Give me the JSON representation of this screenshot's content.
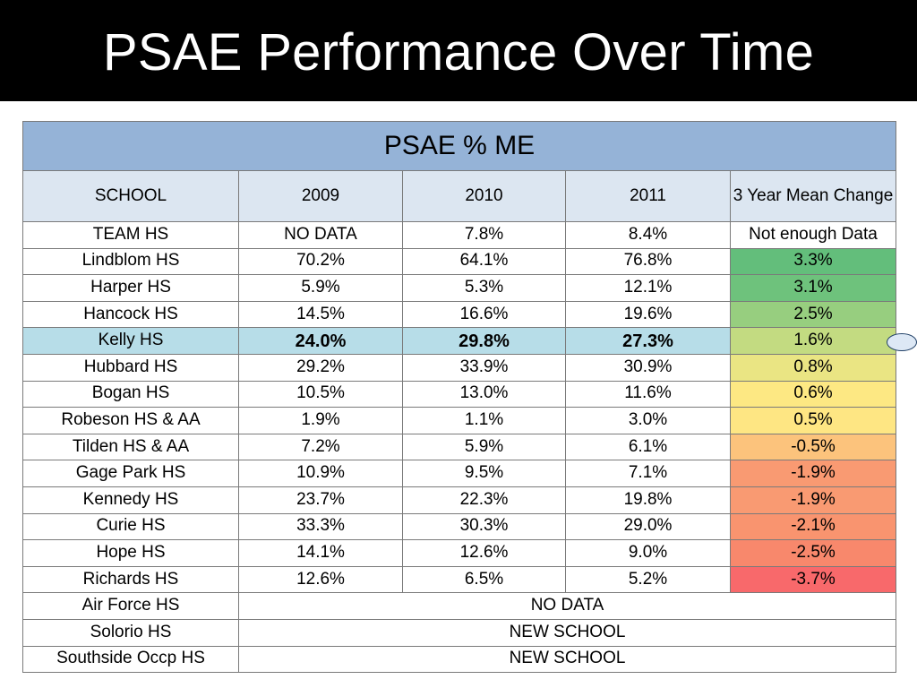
{
  "title": "PSAE Performance Over Time",
  "table": {
    "main_header": "PSAE % ME",
    "columns": [
      "SCHOOL",
      "2009",
      "2010",
      "2011",
      "3 Year Mean Change"
    ],
    "highlighted_school": "Kelly HS",
    "rows": [
      {
        "school": "TEAM HS",
        "y2009": "NO DATA",
        "y2010": "7.8%",
        "y2011": "8.4%",
        "change": "Not enough Data",
        "change_color": "#ffffff"
      },
      {
        "school": "Lindblom HS",
        "y2009": "70.2%",
        "y2010": "64.1%",
        "y2011": "76.8%",
        "change": "3.3%",
        "change_color": "#63be7b"
      },
      {
        "school": "Harper HS",
        "y2009": "5.9%",
        "y2010": "5.3%",
        "y2011": "12.1%",
        "change": "3.1%",
        "change_color": "#6ec27c"
      },
      {
        "school": "Hancock HS",
        "y2009": "14.5%",
        "y2010": "16.6%",
        "y2011": "19.6%",
        "change": "2.5%",
        "change_color": "#97ce7f"
      },
      {
        "school": "Kelly HS",
        "y2009": "24.0%",
        "y2010": "29.8%",
        "y2011": "27.3%",
        "change": "1.6%",
        "change_color": "#c3db81"
      },
      {
        "school": "Hubbard HS",
        "y2009": "29.2%",
        "y2010": "33.9%",
        "y2011": "30.9%",
        "change": "0.8%",
        "change_color": "#eae583"
      },
      {
        "school": "Bogan HS",
        "y2009": "10.5%",
        "y2010": "13.0%",
        "y2011": "11.6%",
        "change": "0.6%",
        "change_color": "#fde883"
      },
      {
        "school": "Robeson HS & AA",
        "y2009": "1.9%",
        "y2010": "1.1%",
        "y2011": "3.0%",
        "change": "0.5%",
        "change_color": "#fee683"
      },
      {
        "school": "Tilden HS & AA",
        "y2009": "7.2%",
        "y2010": "5.9%",
        "y2011": "6.1%",
        "change": "-0.5%",
        "change_color": "#fcc37c"
      },
      {
        "school": "Gage Park HS",
        "y2009": "10.9%",
        "y2010": "9.5%",
        "y2011": "7.1%",
        "change": "-1.9%",
        "change_color": "#f99a72"
      },
      {
        "school": "Kennedy HS",
        "y2009": "23.7%",
        "y2010": "22.3%",
        "y2011": "19.8%",
        "change": "-1.9%",
        "change_color": "#f99a72"
      },
      {
        "school": "Curie HS",
        "y2009": "33.3%",
        "y2010": "30.3%",
        "y2011": "29.0%",
        "change": "-2.1%",
        "change_color": "#f9946f"
      },
      {
        "school": "Hope HS",
        "y2009": "14.1%",
        "y2010": "12.6%",
        "y2011": "9.0%",
        "change": "-2.5%",
        "change_color": "#f8886c"
      },
      {
        "school": "Richards HS",
        "y2009": "12.6%",
        "y2010": "6.5%",
        "y2011": "5.2%",
        "change": "-3.7%",
        "change_color": "#f8696b"
      }
    ],
    "merged_rows": [
      {
        "school": "Air Force HS",
        "note": "NO DATA"
      },
      {
        "school": "Solorio HS",
        "note": "NEW SCHOOL"
      },
      {
        "school": "Southside Occp HS",
        "note": "NEW SCHOOL"
      }
    ]
  }
}
